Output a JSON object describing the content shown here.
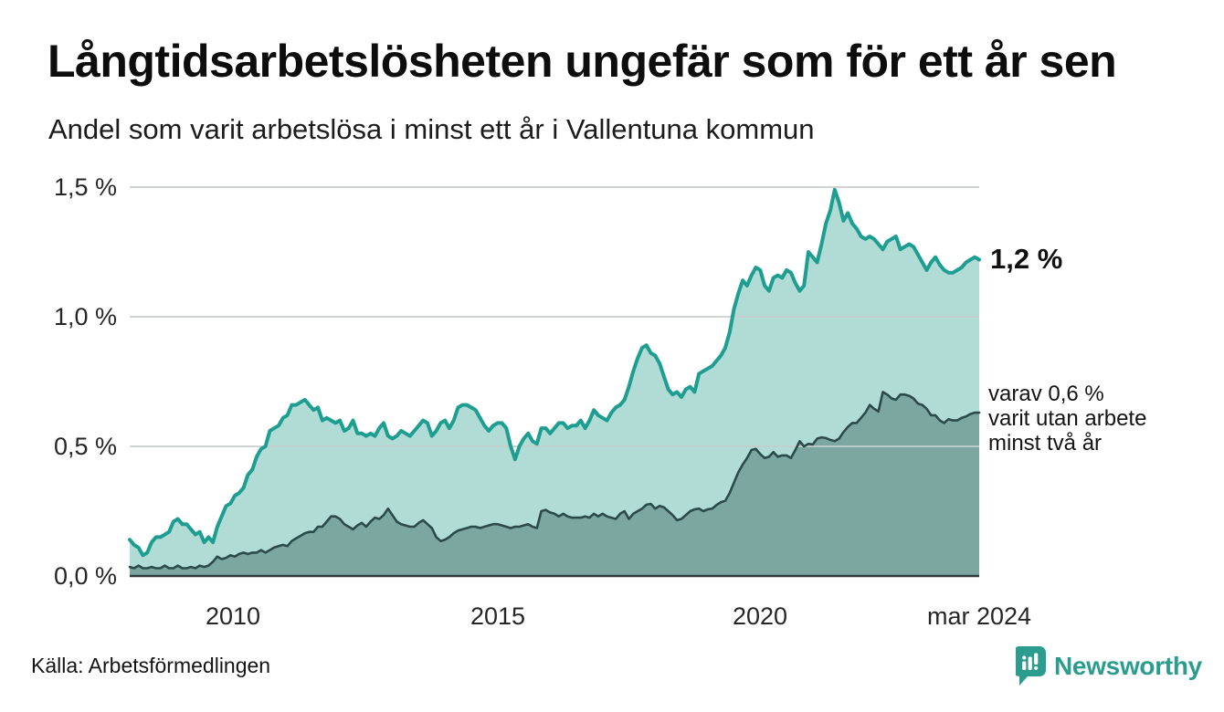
{
  "header": {
    "title": "Långtidsarbetslösheten ungefär som för ett år sen",
    "subtitle": "Andel som varit arbetslösa i minst ett år i Vallentuna kommun"
  },
  "chart": {
    "y_axis": {
      "labels": [
        "1,5 %",
        "1,0 %",
        "0,5 %",
        "0,0 %"
      ],
      "values": [
        1.5,
        1.0,
        0.5,
        0.0
      ]
    },
    "x_axis": {
      "labels": [
        "2010",
        "2015",
        "2020",
        "mar 2024"
      ]
    },
    "annotations": {
      "latest_total": "1,2 %",
      "two_years_lines": [
        "varav 0,6 %",
        "varit utan arbete",
        "minst två år"
      ]
    },
    "colors": {
      "line_total": "#1d9e90",
      "fill_total": "#b1dcd5",
      "line_two_years": "#2b4b4a",
      "fill_two_years": "#7ba7a0",
      "gridline": "#c7cccb",
      "baseline": "#333b3a",
      "brand": "#2b9c8e",
      "text": "#141414"
    }
  },
  "chart_data": {
    "type": "area",
    "title": "Långtidsarbetslösheten ungefär som för ett år sen",
    "subtitle": "Andel som varit arbetslösa i minst ett år i Vallentuna kommun",
    "unit": "%",
    "x_start": "2008-01",
    "x_end": "2024-03",
    "x_frequency": "monthly",
    "ylim": [
      0,
      1.5
    ],
    "y_ticks": [
      0.0,
      0.5,
      1.0,
      1.5
    ],
    "x_tick_month_index": [
      24,
      84,
      144,
      194
    ],
    "x_tick_labels": [
      "2010",
      "2015",
      "2020",
      "mar 2024"
    ],
    "grid": "horizontal",
    "legend_position": "right-annotations",
    "series": [
      {
        "name": "Andel arbetslösa minst ett år",
        "latest_value": 1.2,
        "latest_label": "1,2 %",
        "values": [
          0.14,
          0.12,
          0.11,
          0.08,
          0.09,
          0.13,
          0.15,
          0.15,
          0.16,
          0.17,
          0.21,
          0.22,
          0.2,
          0.2,
          0.18,
          0.16,
          0.17,
          0.13,
          0.15,
          0.13,
          0.19,
          0.23,
          0.27,
          0.28,
          0.31,
          0.32,
          0.34,
          0.39,
          0.41,
          0.46,
          0.49,
          0.5,
          0.56,
          0.57,
          0.58,
          0.61,
          0.62,
          0.66,
          0.66,
          0.67,
          0.68,
          0.66,
          0.64,
          0.65,
          0.6,
          0.61,
          0.6,
          0.59,
          0.6,
          0.56,
          0.57,
          0.6,
          0.55,
          0.55,
          0.54,
          0.55,
          0.54,
          0.57,
          0.59,
          0.54,
          0.53,
          0.54,
          0.56,
          0.55,
          0.54,
          0.56,
          0.58,
          0.6,
          0.59,
          0.54,
          0.56,
          0.59,
          0.6,
          0.57,
          0.6,
          0.65,
          0.66,
          0.66,
          0.65,
          0.64,
          0.61,
          0.58,
          0.56,
          0.58,
          0.59,
          0.59,
          0.57,
          0.5,
          0.45,
          0.5,
          0.53,
          0.55,
          0.52,
          0.51,
          0.57,
          0.57,
          0.55,
          0.57,
          0.59,
          0.59,
          0.57,
          0.58,
          0.58,
          0.6,
          0.57,
          0.6,
          0.64,
          0.62,
          0.61,
          0.6,
          0.63,
          0.65,
          0.66,
          0.68,
          0.73,
          0.79,
          0.84,
          0.88,
          0.89,
          0.86,
          0.85,
          0.82,
          0.77,
          0.72,
          0.7,
          0.71,
          0.69,
          0.72,
          0.73,
          0.71,
          0.78,
          0.79,
          0.8,
          0.81,
          0.83,
          0.85,
          0.88,
          0.94,
          1.03,
          1.09,
          1.14,
          1.12,
          1.16,
          1.19,
          1.18,
          1.12,
          1.1,
          1.15,
          1.16,
          1.15,
          1.18,
          1.17,
          1.13,
          1.1,
          1.12,
          1.25,
          1.23,
          1.21,
          1.28,
          1.36,
          1.41,
          1.49,
          1.44,
          1.37,
          1.4,
          1.36,
          1.34,
          1.31,
          1.3,
          1.31,
          1.3,
          1.28,
          1.26,
          1.29,
          1.3,
          1.31,
          1.26,
          1.27,
          1.28,
          1.27,
          1.24,
          1.21,
          1.18,
          1.21,
          1.23,
          1.2,
          1.18,
          1.17,
          1.17,
          1.18,
          1.19,
          1.21,
          1.22,
          1.23,
          1.22
        ]
      },
      {
        "name": "varav utan arbete minst två år",
        "latest_value": 0.6,
        "latest_label": "0,6 %",
        "values": [
          0.035,
          0.03,
          0.04,
          0.03,
          0.03,
          0.035,
          0.03,
          0.03,
          0.04,
          0.03,
          0.03,
          0.04,
          0.03,
          0.03,
          0.035,
          0.03,
          0.04,
          0.035,
          0.04,
          0.055,
          0.075,
          0.065,
          0.07,
          0.08,
          0.075,
          0.085,
          0.09,
          0.085,
          0.09,
          0.09,
          0.1,
          0.09,
          0.1,
          0.11,
          0.115,
          0.12,
          0.115,
          0.135,
          0.145,
          0.155,
          0.165,
          0.17,
          0.17,
          0.19,
          0.19,
          0.21,
          0.23,
          0.23,
          0.22,
          0.2,
          0.19,
          0.18,
          0.195,
          0.205,
          0.19,
          0.21,
          0.225,
          0.22,
          0.235,
          0.26,
          0.235,
          0.21,
          0.2,
          0.195,
          0.19,
          0.19,
          0.205,
          0.215,
          0.2,
          0.185,
          0.15,
          0.135,
          0.14,
          0.15,
          0.165,
          0.175,
          0.18,
          0.185,
          0.19,
          0.19,
          0.185,
          0.19,
          0.195,
          0.2,
          0.2,
          0.195,
          0.19,
          0.185,
          0.19,
          0.19,
          0.195,
          0.2,
          0.19,
          0.185,
          0.25,
          0.255,
          0.245,
          0.24,
          0.23,
          0.24,
          0.23,
          0.225,
          0.225,
          0.225,
          0.23,
          0.225,
          0.24,
          0.23,
          0.24,
          0.23,
          0.225,
          0.22,
          0.24,
          0.25,
          0.22,
          0.24,
          0.25,
          0.26,
          0.275,
          0.278,
          0.26,
          0.27,
          0.265,
          0.25,
          0.235,
          0.215,
          0.22,
          0.235,
          0.25,
          0.257,
          0.26,
          0.25,
          0.257,
          0.26,
          0.274,
          0.285,
          0.29,
          0.32,
          0.36,
          0.4,
          0.43,
          0.455,
          0.486,
          0.49,
          0.47,
          0.455,
          0.46,
          0.478,
          0.46,
          0.465,
          0.465,
          0.455,
          0.486,
          0.52,
          0.5,
          0.51,
          0.507,
          0.53,
          0.535,
          0.532,
          0.525,
          0.52,
          0.53,
          0.555,
          0.575,
          0.59,
          0.59,
          0.61,
          0.63,
          0.66,
          0.645,
          0.635,
          0.71,
          0.7,
          0.685,
          0.68,
          0.7,
          0.7,
          0.695,
          0.685,
          0.665,
          0.66,
          0.645,
          0.62,
          0.62,
          0.6,
          0.59,
          0.605,
          0.6,
          0.6,
          0.61,
          0.615,
          0.625,
          0.63,
          0.63
        ]
      }
    ]
  },
  "footer": {
    "source": "Källa: Arbetsförmedlingen",
    "brand": "Newsworthy"
  }
}
